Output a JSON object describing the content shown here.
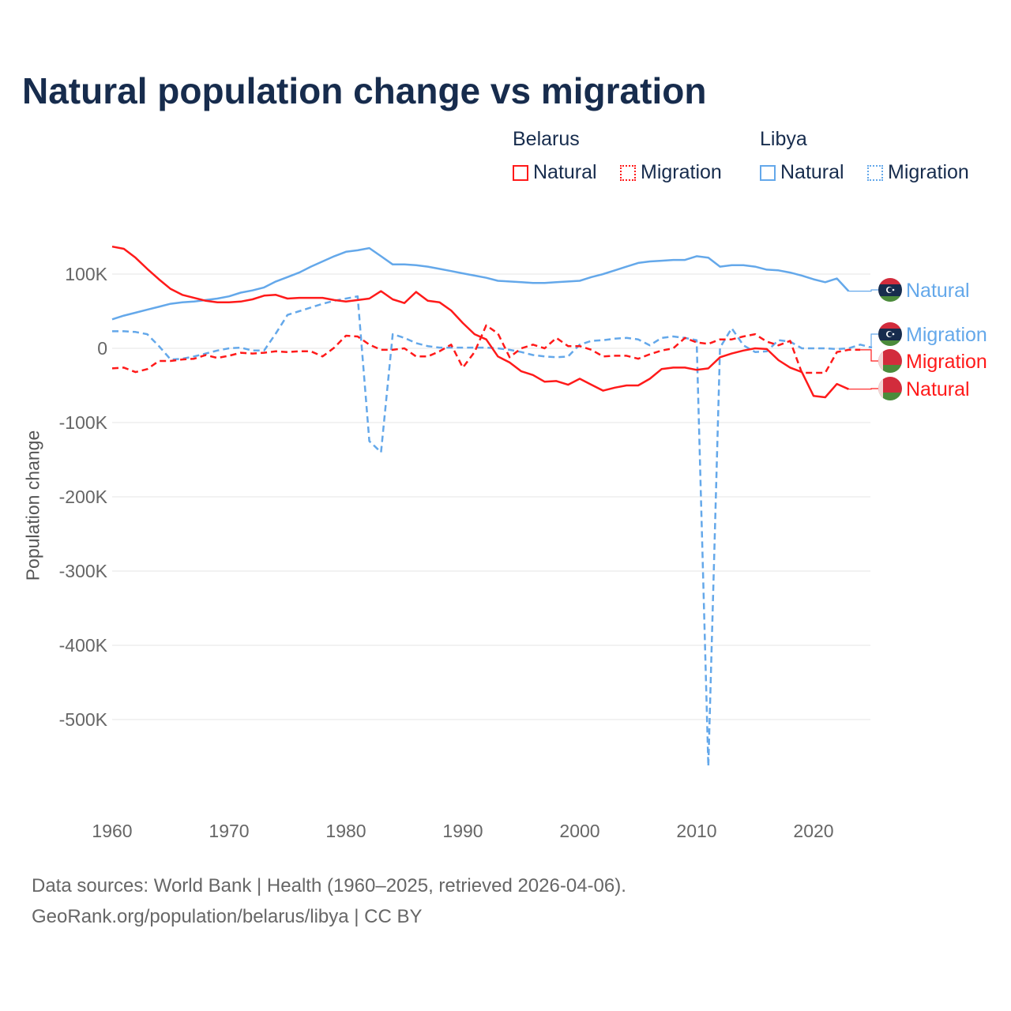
{
  "title": "Natural population change vs migration",
  "legend": {
    "groups": [
      {
        "name": "Belarus",
        "items": [
          {
            "label": "Natural",
            "style": "solid",
            "color": "#ff1a1a"
          },
          {
            "label": "Migration",
            "style": "dotted",
            "color": "#ff1a1a"
          }
        ]
      },
      {
        "name": "Libya",
        "items": [
          {
            "label": "Natural",
            "style": "solid",
            "color": "#64a8ea"
          },
          {
            "label": "Migration",
            "style": "dotted",
            "color": "#64a8ea"
          }
        ]
      }
    ]
  },
  "footer": {
    "source": "Data sources: World Bank | Health (1960–2025, retrieved 2026-04-06).",
    "credit": "GeoRank.org/population/belarus/libya | CC BY"
  },
  "chart_data": {
    "type": "line",
    "title": "Natural population change vs migration",
    "xlabel": "",
    "ylabel": "Population change",
    "xlim": [
      1960,
      2025
    ],
    "ylim": [
      -600000,
      150000
    ],
    "x_ticks": [
      1960,
      1970,
      1980,
      1990,
      2000,
      2010,
      2020
    ],
    "x_tick_labels": [
      "1960",
      "1970",
      "1980",
      "1990",
      "2000",
      "2010",
      "2020"
    ],
    "y_ticks": [
      100000,
      0,
      -100000,
      -200000,
      -300000,
      -400000,
      -500000
    ],
    "y_tick_labels": [
      "100K",
      "0",
      "-100K",
      "-200K",
      "-300K",
      "-400K",
      "-500K"
    ],
    "grid": true,
    "legend_position": "top-right",
    "series": [
      {
        "name": "Libya Natural",
        "country": "Libya",
        "kind": "Natural",
        "end_label": "Natural",
        "color": "#64a8ea",
        "dash": false,
        "start": 1960,
        "values_k": [
          39,
          44,
          48,
          52,
          56,
          60,
          62,
          63,
          65,
          67,
          70,
          75,
          78,
          82,
          90,
          96,
          102,
          110,
          117,
          124,
          130,
          132,
          135,
          124,
          113,
          113,
          112,
          110,
          107,
          104,
          101,
          98,
          95,
          91,
          90,
          89,
          88,
          88,
          89,
          90,
          91,
          96,
          100,
          105,
          110,
          115,
          117,
          118,
          119,
          119,
          124,
          122,
          110,
          112,
          112,
          110,
          106,
          105,
          102,
          98,
          93,
          89,
          94,
          77
        ]
      },
      {
        "name": "Libya Migration",
        "country": "Libya",
        "kind": "Migration",
        "end_label": "Migration",
        "color": "#64a8ea",
        "dash": true,
        "start": 1960,
        "values_k": [
          23,
          23,
          22,
          19,
          3,
          -15,
          -14,
          -11,
          -7,
          -3,
          0,
          1,
          -3,
          -3,
          20,
          45,
          50,
          55,
          60,
          64,
          67,
          70,
          -125,
          -140,
          19,
          14,
          7,
          3,
          1,
          1,
          1,
          1,
          1,
          0,
          -2,
          -5,
          -9,
          -11,
          -12,
          -11,
          5,
          10,
          11,
          13,
          14,
          12,
          4,
          14,
          16,
          14,
          11,
          -563,
          1,
          27,
          4,
          -5,
          -4,
          11,
          9,
          0,
          0,
          0,
          -1,
          0,
          5,
          1
        ]
      },
      {
        "name": "Belarus Migration",
        "country": "Belarus",
        "kind": "Migration",
        "end_label": "Migration",
        "color": "#ff1a1a",
        "dash": true,
        "start": 1960,
        "values_k": [
          -27,
          -26,
          -32,
          -28,
          -17,
          -17,
          -15,
          -14,
          -9,
          -13,
          -10,
          -6,
          -7,
          -6,
          -4,
          -5,
          -4,
          -4,
          -11,
          1,
          17,
          16,
          5,
          -2,
          -2,
          0,
          -11,
          -11,
          -4,
          5,
          -26,
          -5,
          31,
          20,
          -12,
          0,
          5,
          0,
          14,
          3,
          3,
          -2,
          -11,
          -10,
          -10,
          -14,
          -8,
          -3,
          0,
          14,
          8,
          6,
          12,
          12,
          16,
          19,
          9,
          4,
          10,
          -33,
          -33,
          -33,
          -5,
          -2,
          -2
        ]
      },
      {
        "name": "Belarus Natural",
        "country": "Belarus",
        "kind": "Natural",
        "end_label": "Natural",
        "color": "#ff1a1a",
        "dash": false,
        "start": 1960,
        "values_k": [
          137,
          134,
          122,
          107,
          93,
          80,
          72,
          68,
          64,
          62,
          62,
          63,
          66,
          71,
          72,
          67,
          68,
          68,
          68,
          65,
          63,
          65,
          67,
          77,
          66,
          61,
          76,
          64,
          62,
          51,
          34,
          19,
          12,
          -11,
          -19,
          -31,
          -36,
          -45,
          -44,
          -49,
          -41,
          -49,
          -57,
          -53,
          -50,
          -50,
          -41,
          -28,
          -26,
          -26,
          -29,
          -27,
          -12,
          -7,
          -3,
          0,
          -1,
          -16,
          -26,
          -32,
          -64,
          -66,
          -48,
          -55
        ]
      }
    ]
  }
}
